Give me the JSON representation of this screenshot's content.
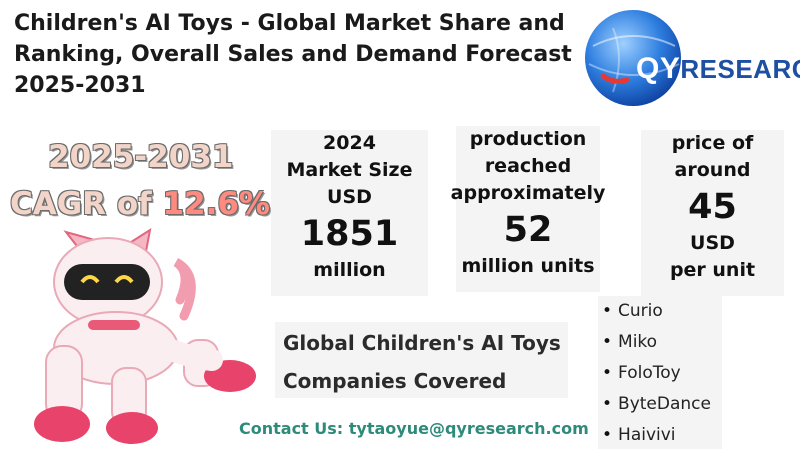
{
  "title": "Children's AI Toys - Global Market Share and Ranking, Overall Sales and Demand Forecast 2025-2031",
  "logo": {
    "qy": "QY",
    "rest": "RESEARCH"
  },
  "cagr": {
    "years": "2025-2031",
    "prefix": "CAGR of ",
    "value": "12.6%"
  },
  "market_size": {
    "l1": "2024",
    "l2": "Market Size",
    "l3": "USD",
    "value": "1851",
    "unit": "million"
  },
  "production": {
    "l1": "production",
    "l2": "reached",
    "l3": "approximately",
    "value": "52",
    "unit": "million units"
  },
  "price": {
    "l1": "price of",
    "l2": "around",
    "value": "45",
    "u1": "USD",
    "u2": "per unit"
  },
  "companies_heading": {
    "l1": "Global Children's AI Toys",
    "l2": "Companies Covered"
  },
  "companies": [
    "Curio",
    "Miko",
    "FoloToy",
    "ByteDance",
    "Haivivi"
  ],
  "contact": "Contact Us: tytaoyue@qyresearch.com",
  "colors": {
    "brand_blue": "#1d4fa3",
    "contact_green": "#2e8b7a",
    "cagr_accent": "#ff8a80",
    "box_bg": "#f4f4f4"
  },
  "icons": {
    "logo": "globe-logo-icon",
    "robot": "robot-cat-icon"
  }
}
